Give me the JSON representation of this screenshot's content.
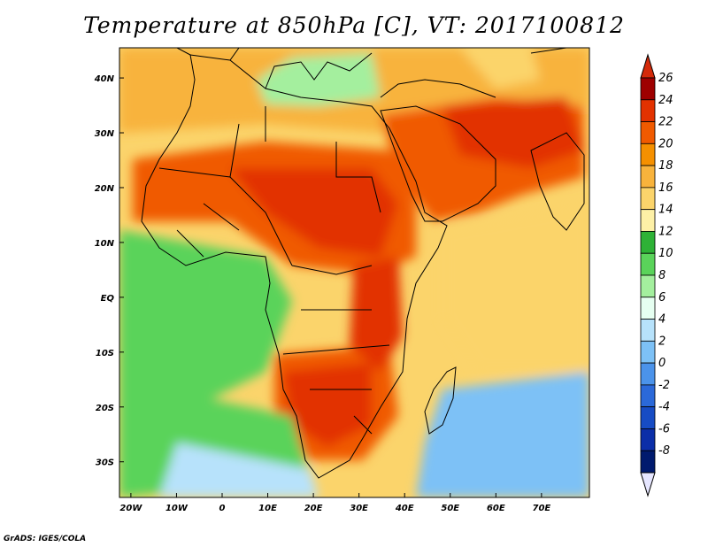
{
  "title": "Temperature at 850hPa [C], VT: 2017100812",
  "credit": "GrADS: IGES/COLA",
  "axes": {
    "lat_labels": [
      "40N",
      "30N",
      "20N",
      "10N",
      "EQ",
      "10S",
      "20S",
      "30S"
    ],
    "lon_labels": [
      "20W",
      "10W",
      "0",
      "10E",
      "20E",
      "30E",
      "40E",
      "50E",
      "60E",
      "70E"
    ],
    "lat_range": [
      -36.5,
      45.5
    ],
    "lon_range": [
      -22.5,
      80.5
    ]
  },
  "colorbar": {
    "labels": [
      "26",
      "24",
      "22",
      "20",
      "18",
      "16",
      "14",
      "12",
      "10",
      "8",
      "6",
      "4",
      "2",
      "0",
      "-2",
      "-4",
      "-6",
      "-8"
    ],
    "colors": [
      "#9e0000",
      "#e23200",
      "#f05a00",
      "#f59000",
      "#f8b33c",
      "#fbd46b",
      "#fdf0a6",
      "#2eb236",
      "#5ad35a",
      "#a4ef9e",
      "#e6fff1",
      "#b7e2fb",
      "#7dc1f6",
      "#4b93ea",
      "#2b69d9",
      "#174cc4",
      "#0b2ea8",
      "#001a6e"
    ],
    "over_color": "#d42a0a",
    "under_color": "#e6e6ff"
  },
  "fields": {
    "background": "#fbd46b",
    "regions": [
      {
        "name": "northern-band",
        "color": "#f8b33c"
      },
      {
        "name": "sahel-hot",
        "color": "#f05a00"
      },
      {
        "name": "arabia-hot",
        "color": "#f05a00"
      },
      {
        "name": "iran-core",
        "color": "#e23200"
      },
      {
        "name": "sudan-core",
        "color": "#e23200"
      },
      {
        "name": "kalahari-hot",
        "color": "#f05a00"
      },
      {
        "name": "kalahari-core",
        "color": "#e23200"
      },
      {
        "name": "rift-hot",
        "color": "#e23200"
      },
      {
        "name": "atlantic-cool",
        "color": "#f8b33c"
      },
      {
        "name": "south-atlantic-green",
        "color": "#5ad35a"
      },
      {
        "name": "south-indian-green",
        "color": "#5ad35a"
      },
      {
        "name": "south-blue",
        "color": "#7dc1f6"
      },
      {
        "name": "mediterranean",
        "color": "#b7e2fb"
      },
      {
        "name": "caspian-cool",
        "color": "#a4ef9e"
      },
      {
        "name": "indian-ocean-warm",
        "color": "#fbd46b"
      }
    ]
  }
}
